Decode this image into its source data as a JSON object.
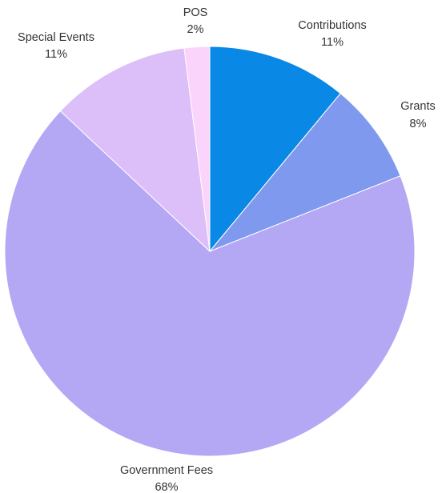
{
  "chart_data": {
    "type": "pie",
    "title": "",
    "slices": [
      {
        "label": "Contributions",
        "percent_label": "11%",
        "value": 11,
        "color": "#0a88e5"
      },
      {
        "label": "Grants",
        "percent_label": "8%",
        "value": 8,
        "color": "#7f99ee"
      },
      {
        "label": "Government Fees",
        "percent_label": "68%",
        "value": 68,
        "color": "#b4a8f5"
      },
      {
        "label": "Special Events",
        "percent_label": "11%",
        "value": 11,
        "color": "#dcbef9"
      },
      {
        "label": "POS",
        "percent_label": "2%",
        "value": 2,
        "color": "#fbd4fb"
      }
    ],
    "start_angle": "12 o'clock",
    "direction": "clockwise",
    "legend": "none",
    "labels": "outside, name above percent"
  }
}
